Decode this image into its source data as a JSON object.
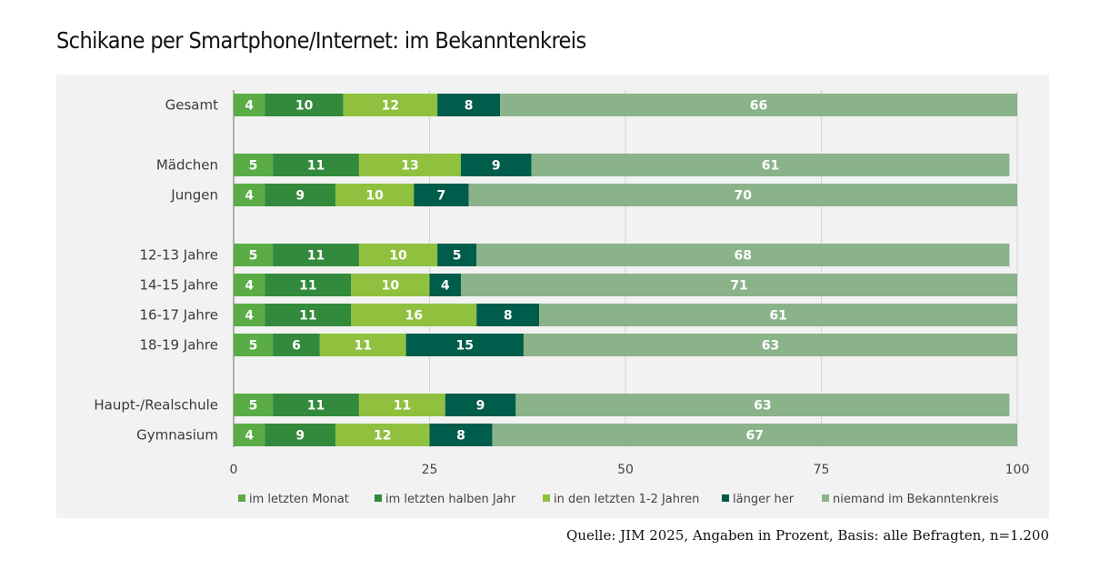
{
  "title": "Schikane per Smartphone/Internet: im Bekanntenkreis",
  "source": "Quelle: JIM 2025, Angaben in Prozent, Basis: alle Befragten, n=1.200",
  "chart_data": {
    "type": "bar",
    "orientation": "horizontal",
    "stacked": true,
    "title": "Schikane per Smartphone/Internet: im Bekanntenkreis",
    "xlabel": "",
    "ylabel": "",
    "xlim": [
      0,
      100
    ],
    "xticks": [
      0,
      25,
      50,
      75,
      100
    ],
    "grid": true,
    "legend_position": "bottom",
    "categories": [
      "Gesamt",
      "Mädchen",
      "Jungen",
      "12-13 Jahre",
      "14-15 Jahre",
      "16-17 Jahre",
      "18-19 Jahre",
      "Haupt-/Realschule",
      "Gymnasium"
    ],
    "groups": [
      [
        "Gesamt"
      ],
      [
        "Mädchen",
        "Jungen"
      ],
      [
        "12-13 Jahre",
        "14-15 Jahre",
        "16-17 Jahre",
        "18-19 Jahre"
      ],
      [
        "Haupt-/Realschule",
        "Gymnasium"
      ]
    ],
    "series": [
      {
        "name": "im letzten Monat",
        "color": "#5aad46",
        "values": [
          4,
          5,
          4,
          5,
          4,
          4,
          5,
          5,
          4
        ]
      },
      {
        "name": "im letzten halben Jahr",
        "color": "#338a3c",
        "values": [
          10,
          11,
          9,
          11,
          11,
          11,
          6,
          11,
          9
        ]
      },
      {
        "name": "in den letzten 1-2 Jahren",
        "color": "#8fc13e",
        "values": [
          12,
          13,
          10,
          10,
          10,
          16,
          11,
          11,
          12
        ]
      },
      {
        "name": "länger her",
        "color": "#005c4b",
        "values": [
          8,
          9,
          7,
          5,
          4,
          8,
          15,
          9,
          8
        ]
      },
      {
        "name": "niemand im Bekanntenkreis",
        "color": "#8bb38a",
        "values": [
          66,
          61,
          70,
          68,
          71,
          61,
          63,
          63,
          67
        ]
      }
    ]
  }
}
